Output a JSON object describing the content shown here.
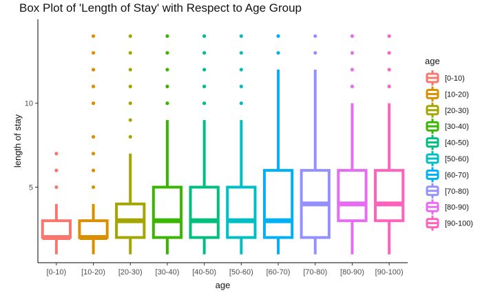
{
  "chart_data": {
    "type": "box",
    "title": "Box Plot of 'Length of Stay' with Respect to Age Group",
    "xlabel": "age",
    "ylabel": "length of stay",
    "ylim": [
      0.5,
      15
    ],
    "yticks": [
      5,
      10
    ],
    "grid": false,
    "legend": {
      "title": "age",
      "position": "right"
    },
    "categories": [
      "[0-10)",
      "[10-20)",
      "[20-30)",
      "[30-40)",
      "[40-50)",
      "[50-60)",
      "[60-70)",
      "[70-80)",
      "[80-90)",
      "[90-100)"
    ],
    "colors": [
      "#F8766D",
      "#D89000",
      "#A3A500",
      "#39B600",
      "#00BF7D",
      "#00BFC4",
      "#00B0F6",
      "#9590FF",
      "#E76BF3",
      "#FF62BC"
    ],
    "boxes": [
      {
        "category": "[0-10)",
        "min": 1,
        "q1": 2,
        "median": 2,
        "q3": 3,
        "max": 4,
        "outliers": [
          5,
          6,
          7
        ]
      },
      {
        "category": "[10-20)",
        "min": 1,
        "q1": 2,
        "median": 2,
        "q3": 3,
        "max": 4,
        "outliers": [
          5,
          6,
          7,
          8,
          10,
          11,
          12,
          13,
          14
        ]
      },
      {
        "category": "[20-30)",
        "min": 1,
        "q1": 2,
        "median": 3,
        "q3": 4,
        "max": 7,
        "outliers": [
          8,
          9,
          10,
          11,
          12,
          13,
          14
        ]
      },
      {
        "category": "[30-40)",
        "min": 1,
        "q1": 2,
        "median": 3,
        "q3": 5,
        "max": 9,
        "outliers": [
          10,
          11,
          12,
          13,
          14
        ]
      },
      {
        "category": "[40-50)",
        "min": 1,
        "q1": 2,
        "median": 3,
        "q3": 5,
        "max": 9,
        "outliers": [
          10,
          11,
          12,
          13,
          14
        ]
      },
      {
        "category": "[50-60)",
        "min": 1,
        "q1": 2,
        "median": 3,
        "q3": 5,
        "max": 9,
        "outliers": [
          10,
          11,
          12,
          13,
          14
        ]
      },
      {
        "category": "[60-70)",
        "min": 1,
        "q1": 2,
        "median": 3,
        "q3": 6,
        "max": 12,
        "outliers": [
          13,
          14
        ]
      },
      {
        "category": "[70-80)",
        "min": 1,
        "q1": 2,
        "median": 4,
        "q3": 6,
        "max": 12,
        "outliers": [
          13,
          14
        ]
      },
      {
        "category": "[80-90)",
        "min": 1,
        "q1": 3,
        "median": 4,
        "q3": 6,
        "max": 10,
        "outliers": [
          11,
          12,
          13,
          14
        ]
      },
      {
        "category": "[90-100)",
        "min": 1,
        "q1": 3,
        "median": 4,
        "q3": 6,
        "max": 10,
        "outliers": [
          11,
          12,
          13,
          14
        ]
      }
    ]
  }
}
